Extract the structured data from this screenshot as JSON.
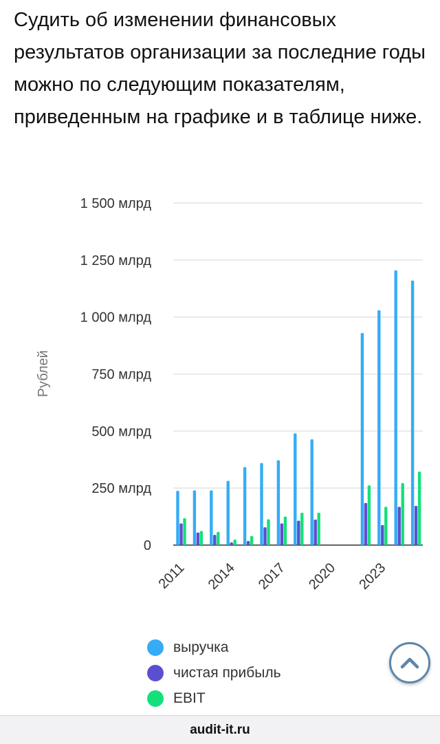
{
  "article": {
    "intro_text": "Судить об изменении финансовых результатов организации за последние годы можно по следующим показателям, приведенным на графике и в таблице ниже."
  },
  "colors": {
    "revenue": "#35acf5",
    "net_profit": "#5b4fd1",
    "ebit": "#14e07a",
    "grid": "#e3e3e3",
    "axis_text": "#333333",
    "scroll_button_border": "#5c86ab"
  },
  "chart_data": {
    "type": "bar",
    "ylabel": "Рублей",
    "xlabel": "",
    "ylim": [
      0,
      1500
    ],
    "y_unit": "млрд",
    "y_ticks": [
      {
        "value": 0,
        "label": "0"
      },
      {
        "value": 250,
        "label": "250 млрд"
      },
      {
        "value": 500,
        "label": "500 млрд"
      },
      {
        "value": 750,
        "label": "750 млрд"
      },
      {
        "value": 1000,
        "label": "1 000 млрд"
      },
      {
        "value": 1250,
        "label": "1 250 млрд"
      },
      {
        "value": 1500,
        "label": "1 500 млрд"
      }
    ],
    "x_ticks": [
      {
        "year": 2011,
        "label": "2011"
      },
      {
        "year": 2014,
        "label": "2014"
      },
      {
        "year": 2017,
        "label": "2017"
      },
      {
        "year": 2020,
        "label": "2020"
      },
      {
        "year": 2023,
        "label": "2023"
      }
    ],
    "grid": true,
    "legend_position": "bottom",
    "categories": [
      2011,
      2012,
      2013,
      2014,
      2015,
      2016,
      2017,
      2018,
      2019,
      2020,
      2021,
      2022,
      2023,
      2024,
      2025
    ],
    "series": [
      {
        "name": "выручка",
        "color_key": "revenue",
        "values": [
          238,
          240,
          240,
          282,
          342,
          360,
          372,
          490,
          464,
          null,
          null,
          930,
          1030,
          1205,
          1160
        ]
      },
      {
        "name": "чистая прибыль",
        "color_key": "net_profit",
        "values": [
          95,
          55,
          45,
          12,
          18,
          78,
          95,
          107,
          112,
          null,
          null,
          185,
          88,
          168,
          172
        ]
      },
      {
        "name": "EBIT",
        "color_key": "ebit",
        "values": [
          118,
          62,
          58,
          24,
          40,
          113,
          125,
          142,
          142,
          null,
          null,
          262,
          168,
          272,
          322
        ]
      }
    ]
  },
  "scroll_top": {
    "icon": "chevron-up-icon"
  },
  "footer": {
    "site": "audit-it.ru"
  }
}
